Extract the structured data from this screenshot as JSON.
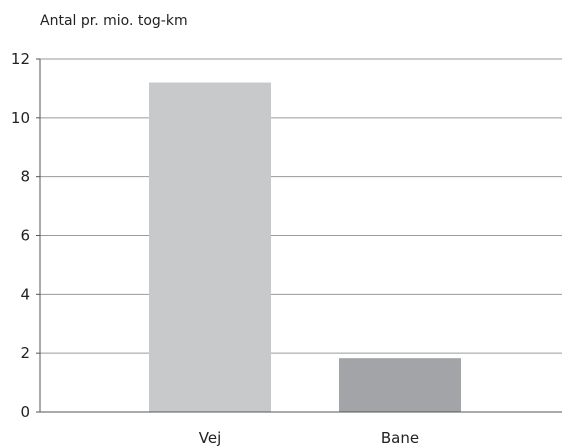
{
  "chart_data": {
    "type": "bar",
    "title": "",
    "ylabel": "Antal pr. mio. tog-km",
    "xlabel": "",
    "categories": [
      "Vej",
      "Bane"
    ],
    "values": [
      11.2,
      1.83
    ],
    "bar_colors": [
      "#c8c9cb",
      "#a3a4a7"
    ],
    "ylim": [
      0,
      12
    ],
    "yticks": [
      0,
      2,
      4,
      6,
      8,
      10,
      12
    ],
    "grid": true,
    "legend": false
  }
}
